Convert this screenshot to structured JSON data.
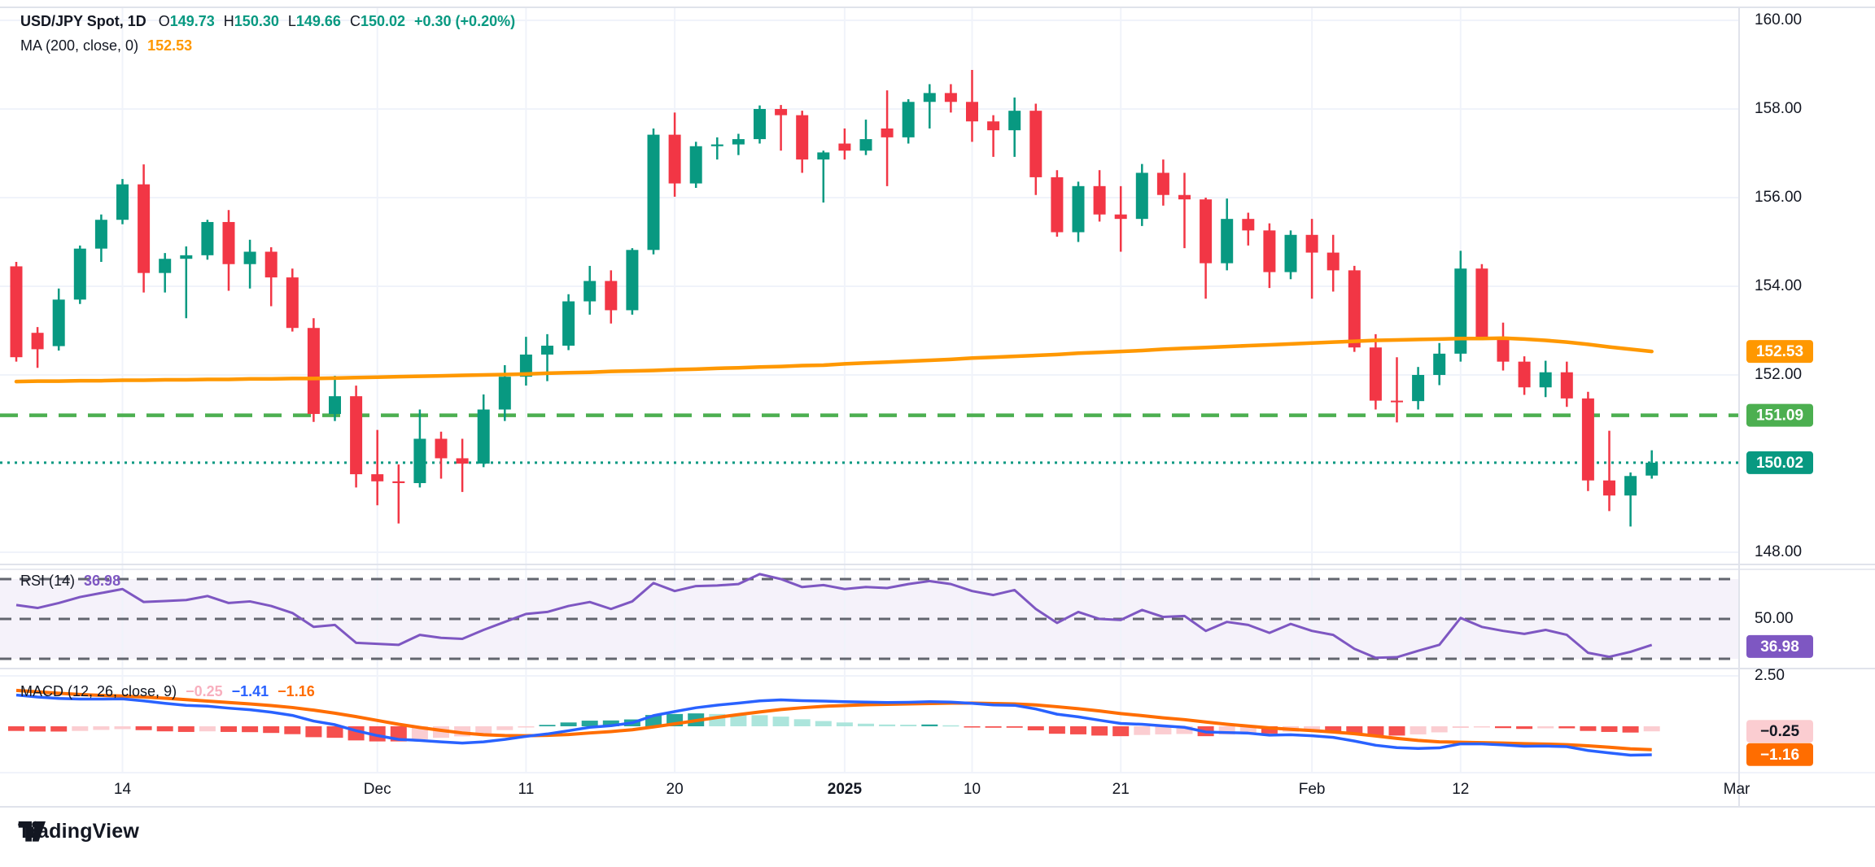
{
  "header": {
    "symbol": "USD/JPY Spot, 1D",
    "o_label": "O",
    "o": "149.73",
    "h_label": "H",
    "h": "150.30",
    "l_label": "L",
    "l": "149.66",
    "c_label": "C",
    "c": "150.02",
    "change": "+0.30 (+0.20%)",
    "ma_label": "MA (200, close, 0)",
    "ma_value": "152.53"
  },
  "rsi_legend": {
    "label": "RSI (14)",
    "value": "36.98"
  },
  "macd_legend": {
    "label": "MACD (12, 26, close, 9)",
    "hist": "−0.25",
    "macd": "−1.41",
    "signal": "−1.16"
  },
  "watermark": "TradingView",
  "colors": {
    "up": "#089981",
    "down": "#F23645",
    "ma": "#FF9800",
    "level_green": "#4CAF50",
    "level_teal": "#089981",
    "rsi": "#7E57C2",
    "rsi_band": "rgba(126,87,194,0.08)",
    "rsi_dash": "#62656E",
    "macd_line": "#2962FF",
    "signal_line": "#FF6D00",
    "hist_up": "#26A69A",
    "hist_up_weak": "#ACE5DC",
    "hist_down": "#F5504E",
    "hist_down_weak": "#FBCDD1",
    "grid": "#F0F3FA",
    "border": "#E0E3EB",
    "text": "#131722",
    "value_green": "#089981",
    "legend_hist_pink": "#F8AFBE"
  },
  "price_axis": {
    "labels": [
      {
        "text": "160.00",
        "value": 160.0
      },
      {
        "text": "158.00",
        "value": 158.0
      },
      {
        "text": "156.00",
        "value": 156.0
      },
      {
        "text": "154.00",
        "value": 154.0
      },
      {
        "text": "152.00",
        "value": 152.0
      },
      {
        "text": "148.00",
        "value": 148.0
      }
    ],
    "rsi_label": {
      "text": "50.00",
      "value": 50
    },
    "macd_label": {
      "text": "2.50",
      "value": 2.5
    },
    "badges": [
      {
        "name": "ma-badge",
        "text": "152.53",
        "pane": "price",
        "value": 152.53,
        "bg": "#FF9800",
        "fg": "#ffffff"
      },
      {
        "name": "level-badge",
        "text": "151.09",
        "pane": "price",
        "value": 151.09,
        "bg": "#4CAF50",
        "fg": "#ffffff"
      },
      {
        "name": "close-badge",
        "text": "150.02",
        "pane": "price",
        "value": 150.02,
        "bg": "#089981",
        "fg": "#ffffff"
      },
      {
        "name": "rsi-badge",
        "text": "36.98",
        "pane": "rsi",
        "value": 36.98,
        "bg": "#7E57C2",
        "fg": "#ffffff"
      },
      {
        "name": "hist-badge",
        "text": "−0.25",
        "pane": "macd",
        "value": -0.25,
        "bg": "#FBCDD1",
        "fg": "#131722"
      },
      {
        "name": "macd-badge",
        "text": "−1.16",
        "pane": "macd",
        "value": -1.16,
        "bg": "#FF6D00",
        "fg": "#ffffff"
      }
    ]
  },
  "chart_data": {
    "type": "candlestick",
    "title": "USD/JPY Spot, 1D",
    "ylim_price": [
      147.4,
      160.3
    ],
    "ylim_rsi": [
      25,
      75
    ],
    "ylim_macd": [
      -2.4,
      2.9
    ],
    "grid": true,
    "price_gridlines": [
      160,
      158,
      156,
      154,
      152,
      148
    ],
    "macd_gridlines": [
      2.5
    ],
    "rsi_levels": [
      70,
      50,
      30
    ],
    "levels": [
      {
        "value": 151.09,
        "style": "dashed",
        "color": "#4CAF50",
        "label": "151.09"
      },
      {
        "value": 150.02,
        "style": "dotted",
        "color": "#089981",
        "label": "150.02"
      }
    ],
    "x_ticks": [
      {
        "label": "14",
        "idx": 5,
        "bold": false
      },
      {
        "label": "Dec",
        "idx": 17,
        "bold": false
      },
      {
        "label": "11",
        "idx": 24,
        "bold": false
      },
      {
        "label": "20",
        "idx": 31,
        "bold": false
      },
      {
        "label": "2025",
        "idx": 39,
        "bold": true
      },
      {
        "label": "10",
        "idx": 45,
        "bold": false
      },
      {
        "label": "21",
        "idx": 52,
        "bold": false
      },
      {
        "label": "Feb",
        "idx": 61,
        "bold": false
      },
      {
        "label": "12",
        "idx": 68,
        "bold": false
      },
      {
        "label": "Mar",
        "idx": 81,
        "bold": false
      }
    ],
    "candles_ohlc": [
      [
        154.45,
        154.55,
        152.3,
        152.4
      ],
      [
        152.95,
        153.08,
        152.16,
        152.58
      ],
      [
        152.65,
        153.95,
        152.55,
        153.7
      ],
      [
        153.7,
        154.92,
        153.6,
        154.85
      ],
      [
        154.85,
        155.62,
        154.55,
        155.5
      ],
      [
        155.5,
        156.42,
        155.4,
        156.3
      ],
      [
        156.3,
        156.75,
        153.86,
        154.3
      ],
      [
        154.3,
        154.75,
        153.86,
        154.62
      ],
      [
        154.62,
        154.9,
        153.28,
        154.7
      ],
      [
        154.7,
        155.5,
        154.6,
        155.45
      ],
      [
        155.45,
        155.72,
        153.9,
        154.5
      ],
      [
        154.5,
        155.05,
        153.95,
        154.78
      ],
      [
        154.78,
        154.88,
        153.55,
        154.2
      ],
      [
        154.2,
        154.4,
        152.98,
        153.06
      ],
      [
        153.06,
        153.28,
        150.94,
        151.12
      ],
      [
        151.12,
        151.98,
        150.96,
        151.52
      ],
      [
        151.52,
        151.76,
        149.46,
        149.76
      ],
      [
        149.76,
        150.76,
        149.06,
        149.6
      ],
      [
        149.6,
        149.98,
        148.65,
        149.56
      ],
      [
        149.56,
        151.22,
        149.46,
        150.56
      ],
      [
        150.56,
        150.72,
        149.66,
        150.12
      ],
      [
        150.12,
        150.56,
        149.36,
        150.0
      ],
      [
        150.0,
        151.56,
        149.92,
        151.22
      ],
      [
        151.22,
        152.22,
        150.96,
        151.96
      ],
      [
        151.96,
        152.86,
        151.76,
        152.46
      ],
      [
        152.46,
        152.92,
        151.86,
        152.66
      ],
      [
        152.66,
        153.82,
        152.56,
        153.66
      ],
      [
        153.66,
        154.46,
        153.36,
        154.12
      ],
      [
        154.12,
        154.36,
        153.16,
        153.46
      ],
      [
        153.46,
        154.86,
        153.36,
        154.82
      ],
      [
        154.82,
        157.56,
        154.72,
        157.42
      ],
      [
        157.42,
        157.92,
        156.02,
        156.32
      ],
      [
        156.32,
        157.26,
        156.22,
        157.16
      ],
      [
        157.16,
        157.36,
        156.86,
        157.2
      ],
      [
        157.2,
        157.44,
        156.96,
        157.32
      ],
      [
        157.32,
        158.08,
        157.22,
        158.0
      ],
      [
        158.0,
        158.09,
        157.06,
        157.86
      ],
      [
        157.86,
        157.96,
        156.56,
        156.86
      ],
      [
        156.86,
        157.06,
        155.89,
        157.02
      ],
      [
        157.22,
        157.56,
        156.86,
        157.06
      ],
      [
        157.06,
        157.76,
        156.96,
        157.32
      ],
      [
        157.56,
        158.42,
        156.26,
        157.36
      ],
      [
        157.36,
        158.22,
        157.22,
        158.16
      ],
      [
        158.16,
        158.56,
        157.56,
        158.36
      ],
      [
        158.36,
        158.56,
        157.92,
        158.16
      ],
      [
        158.16,
        158.88,
        157.26,
        157.72
      ],
      [
        157.72,
        157.86,
        156.92,
        157.52
      ],
      [
        157.52,
        158.26,
        156.92,
        157.96
      ],
      [
        157.96,
        158.12,
        156.06,
        156.46
      ],
      [
        156.46,
        156.62,
        155.12,
        155.22
      ],
      [
        155.22,
        156.36,
        155.0,
        156.26
      ],
      [
        156.26,
        156.62,
        155.46,
        155.62
      ],
      [
        155.62,
        156.26,
        154.78,
        155.52
      ],
      [
        155.52,
        156.76,
        155.36,
        156.56
      ],
      [
        156.56,
        156.86,
        155.82,
        156.06
      ],
      [
        156.06,
        156.56,
        154.86,
        155.96
      ],
      [
        155.96,
        156.0,
        153.72,
        154.52
      ],
      [
        154.52,
        155.98,
        154.36,
        155.52
      ],
      [
        155.52,
        155.66,
        154.92,
        155.26
      ],
      [
        155.26,
        155.42,
        153.96,
        154.32
      ],
      [
        154.32,
        155.26,
        154.16,
        155.16
      ],
      [
        155.16,
        155.52,
        153.72,
        154.76
      ],
      [
        154.76,
        155.16,
        153.88,
        154.36
      ],
      [
        154.36,
        154.46,
        152.52,
        152.62
      ],
      [
        152.62,
        152.92,
        151.22,
        151.42
      ],
      [
        151.42,
        152.4,
        150.93,
        151.41
      ],
      [
        151.41,
        152.18,
        151.22,
        152.0
      ],
      [
        152.0,
        152.72,
        151.77,
        152.48
      ],
      [
        152.48,
        154.8,
        152.3,
        154.4
      ],
      [
        154.4,
        154.5,
        152.78,
        152.85
      ],
      [
        152.85,
        153.18,
        152.1,
        152.3
      ],
      [
        152.3,
        152.42,
        151.55,
        151.72
      ],
      [
        151.72,
        152.32,
        151.5,
        152.06
      ],
      [
        152.06,
        152.3,
        151.28,
        151.47
      ],
      [
        151.47,
        151.62,
        149.38,
        149.62
      ],
      [
        149.62,
        150.74,
        148.93,
        149.28
      ],
      [
        149.28,
        149.8,
        148.58,
        149.72
      ],
      [
        149.73,
        150.3,
        149.66,
        150.02
      ]
    ],
    "ma200": [
      151.85,
      151.86,
      151.86,
      151.87,
      151.87,
      151.88,
      151.88,
      151.89,
      151.89,
      151.9,
      151.9,
      151.91,
      151.91,
      151.92,
      151.92,
      151.93,
      151.94,
      151.95,
      151.96,
      151.97,
      151.98,
      151.99,
      152.0,
      152.01,
      152.02,
      152.04,
      152.05,
      152.06,
      152.08,
      152.09,
      152.1,
      152.12,
      152.13,
      152.15,
      152.16,
      152.18,
      152.19,
      152.21,
      152.22,
      152.25,
      152.27,
      152.29,
      152.31,
      152.33,
      152.35,
      152.38,
      152.4,
      152.42,
      152.44,
      152.46,
      152.49,
      152.51,
      152.53,
      152.55,
      152.58,
      152.6,
      152.62,
      152.64,
      152.66,
      152.68,
      152.7,
      152.72,
      152.74,
      152.76,
      152.78,
      152.79,
      152.8,
      152.81,
      152.82,
      152.82,
      152.83,
      152.81,
      152.78,
      152.74,
      152.69,
      152.63,
      152.58,
      152.53
    ],
    "rsi": [
      57,
      55.5,
      58,
      61,
      63,
      65,
      58.5,
      59,
      59.5,
      61.5,
      58,
      58.8,
      56.5,
      53,
      46,
      47,
      38,
      37.5,
      37,
      42,
      40.5,
      40,
      44.5,
      48.5,
      52.5,
      53.5,
      56.5,
      58.5,
      55,
      58.8,
      68,
      64,
      66.5,
      66.8,
      67.5,
      72.5,
      70,
      66,
      67,
      65,
      66,
      65.5,
      67.5,
      69,
      67.5,
      64,
      62,
      64.5,
      55,
      48,
      53.5,
      50,
      49.5,
      54.5,
      51,
      51.5,
      44,
      48.5,
      47,
      43,
      47.5,
      44,
      42,
      35,
      30.5,
      30.8,
      34,
      37,
      50.5,
      46,
      44,
      42.5,
      44.5,
      42,
      33,
      31,
      33.5,
      36.98
    ],
    "macd": [
      1.55,
      1.45,
      1.38,
      1.35,
      1.35,
      1.36,
      1.26,
      1.14,
      1.04,
      1.0,
      0.9,
      0.82,
      0.7,
      0.54,
      0.26,
      0.08,
      -0.22,
      -0.46,
      -0.65,
      -0.7,
      -0.77,
      -0.83,
      -0.77,
      -0.65,
      -0.5,
      -0.38,
      -0.22,
      -0.05,
      0.03,
      0.17,
      0.53,
      0.73,
      0.92,
      1.05,
      1.15,
      1.26,
      1.31,
      1.27,
      1.25,
      1.22,
      1.2,
      1.18,
      1.19,
      1.22,
      1.2,
      1.14,
      1.06,
      1.04,
      0.86,
      0.6,
      0.47,
      0.3,
      0.14,
      0.1,
      0.02,
      -0.05,
      -0.28,
      -0.31,
      -0.34,
      -0.44,
      -0.42,
      -0.47,
      -0.55,
      -0.73,
      -0.94,
      -1.06,
      -1.1,
      -1.07,
      -0.87,
      -0.87,
      -0.92,
      -0.99,
      -0.98,
      -1.01,
      -1.2,
      -1.32,
      -1.43,
      -1.41
    ],
    "signal": [
      1.78,
      1.71,
      1.64,
      1.58,
      1.53,
      1.5,
      1.45,
      1.39,
      1.32,
      1.25,
      1.18,
      1.11,
      1.03,
      0.93,
      0.8,
      0.65,
      0.48,
      0.29,
      0.1,
      -0.06,
      -0.2,
      -0.33,
      -0.42,
      -0.46,
      -0.47,
      -0.45,
      -0.41,
      -0.33,
      -0.26,
      -0.17,
      -0.03,
      0.12,
      0.28,
      0.44,
      0.58,
      0.71,
      0.83,
      0.92,
      0.99,
      1.03,
      1.07,
      1.09,
      1.11,
      1.13,
      1.15,
      1.15,
      1.13,
      1.11,
      1.06,
      0.97,
      0.87,
      0.76,
      0.63,
      0.53,
      0.42,
      0.33,
      0.21,
      0.1,
      0.01,
      -0.08,
      -0.15,
      -0.21,
      -0.28,
      -0.37,
      -0.48,
      -0.6,
      -0.7,
      -0.77,
      -0.79,
      -0.81,
      -0.83,
      -0.86,
      -0.88,
      -0.91,
      -0.97,
      -1.04,
      -1.12,
      -1.16
    ]
  }
}
